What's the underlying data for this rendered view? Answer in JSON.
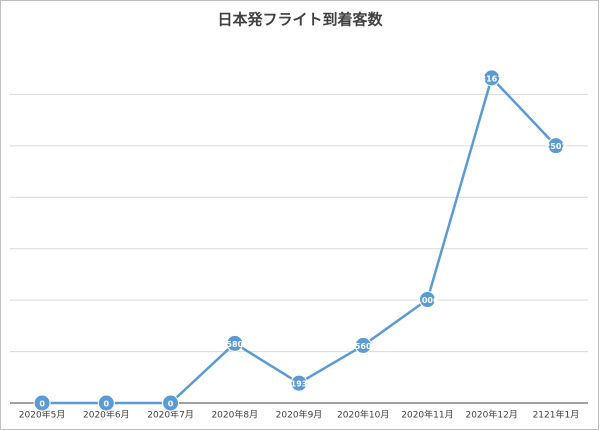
{
  "chart_data": {
    "type": "line",
    "title": "日本発フライト到着客数",
    "categories": [
      "2020年5月",
      "2020年6月",
      "2020年7月",
      "2020年8月",
      "2020年9月",
      "2020年10月",
      "2020年11月",
      "2020年12月",
      "2121年1月"
    ],
    "series": [
      {
        "name": "到着客数",
        "color": "#5b9bd5",
        "values": [
          0,
          0,
          0,
          580,
          193,
          560,
          1006,
          3161,
          2502
        ]
      }
    ],
    "ylim": [
      0,
      3500
    ],
    "yticks": [
      0,
      500,
      1000,
      1500,
      2000,
      2500,
      3000
    ],
    "grid": true
  }
}
